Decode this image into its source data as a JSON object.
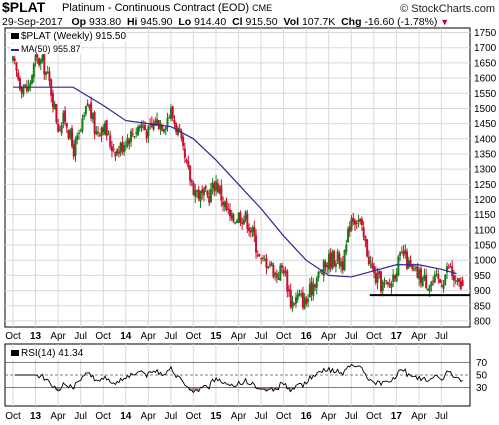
{
  "header": {
    "symbol": "$PLAT",
    "name": "Platinum - Continuous Contract (EOD)",
    "exchange": "CME",
    "brand": "© StockCharts.com",
    "date": "29-Sep-2017",
    "op_label": "Op",
    "op": "933.80",
    "hi_label": "Hi",
    "hi": "945.90",
    "lo_label": "Lo",
    "lo": "914.40",
    "cl_label": "Cl",
    "cl": "915.50",
    "vol_label": "Vol",
    "vol": "107.7K",
    "chg_label": "Chg",
    "chg": "-16.60 (-1.78%)"
  },
  "legend": {
    "price": "$PLAT (Weekly) 915.50",
    "ma": "MA(50) 955.87",
    "rsi": "RSI(14) 41.34"
  },
  "colors": {
    "up": "#1a7a1a",
    "down": "#c8102e",
    "ma": "#2a2a9a",
    "rsi": "#000000",
    "rsi_fill": "#a0507a",
    "support": "#000000",
    "grid": "#d8d8d8"
  },
  "chart_data": [
    {
      "type": "candlestick",
      "timeframe": "weekly",
      "x_range": [
        "2012-10",
        "2017-09"
      ],
      "x_tick_labels": [
        "Oct",
        "13",
        "Apr",
        "Jul",
        "Oct",
        "14",
        "Apr",
        "Jul",
        "Oct",
        "15",
        "Apr",
        "Jul",
        "Oct",
        "16",
        "Apr",
        "Jul",
        "Oct",
        "17",
        "Apr",
        "Jul"
      ],
      "y_tick_labels": [
        800,
        850,
        900,
        950,
        1000,
        1050,
        1100,
        1150,
        1200,
        1250,
        1300,
        1350,
        1400,
        1450,
        1500,
        1550,
        1600,
        1650,
        1700,
        1750
      ],
      "ylim": [
        780,
        1765
      ],
      "grid": true,
      "close_anchors": [
        {
          "x": "2012-10",
          "close": 1650
        },
        {
          "x": "2012-11",
          "close": 1580
        },
        {
          "x": "2012-12",
          "close": 1560
        },
        {
          "x": "2013-01",
          "close": 1660
        },
        {
          "x": "2013-02",
          "close": 1650
        },
        {
          "x": "2013-03",
          "close": 1570
        },
        {
          "x": "2013-04",
          "close": 1440
        },
        {
          "x": "2013-05",
          "close": 1470
        },
        {
          "x": "2013-06",
          "close": 1360
        },
        {
          "x": "2013-07",
          "close": 1420
        },
        {
          "x": "2013-08",
          "close": 1520
        },
        {
          "x": "2013-09",
          "close": 1420
        },
        {
          "x": "2013-10",
          "close": 1450
        },
        {
          "x": "2013-11",
          "close": 1380
        },
        {
          "x": "2013-12",
          "close": 1360
        },
        {
          "x": "2014-01",
          "close": 1400
        },
        {
          "x": "2014-02",
          "close": 1420
        },
        {
          "x": "2014-03",
          "close": 1450
        },
        {
          "x": "2014-04",
          "close": 1420
        },
        {
          "x": "2014-05",
          "close": 1460
        },
        {
          "x": "2014-06",
          "close": 1450
        },
        {
          "x": "2014-07",
          "close": 1490
        },
        {
          "x": "2014-08",
          "close": 1420
        },
        {
          "x": "2014-09",
          "close": 1310
        },
        {
          "x": "2014-10",
          "close": 1240
        },
        {
          "x": "2014-11",
          "close": 1210
        },
        {
          "x": "2014-12",
          "close": 1210
        },
        {
          "x": "2015-01",
          "close": 1260
        },
        {
          "x": "2015-02",
          "close": 1190
        },
        {
          "x": "2015-03",
          "close": 1130
        },
        {
          "x": "2015-04",
          "close": 1150
        },
        {
          "x": "2015-05",
          "close": 1140
        },
        {
          "x": "2015-06",
          "close": 1080
        },
        {
          "x": "2015-07",
          "close": 990
        },
        {
          "x": "2015-08",
          "close": 1000
        },
        {
          "x": "2015-09",
          "close": 950
        },
        {
          "x": "2015-10",
          "close": 980
        },
        {
          "x": "2015-11",
          "close": 860
        },
        {
          "x": "2015-12",
          "close": 880
        },
        {
          "x": "2016-01",
          "close": 860
        },
        {
          "x": "2016-02",
          "close": 930
        },
        {
          "x": "2016-03",
          "close": 960
        },
        {
          "x": "2016-04",
          "close": 1000
        },
        {
          "x": "2016-05",
          "close": 1010
        },
        {
          "x": "2016-06",
          "close": 990
        },
        {
          "x": "2016-07",
          "close": 1150
        },
        {
          "x": "2016-08",
          "close": 1130
        },
        {
          "x": "2016-09",
          "close": 1040
        },
        {
          "x": "2016-10",
          "close": 950
        },
        {
          "x": "2016-11",
          "close": 920
        },
        {
          "x": "2016-12",
          "close": 910
        },
        {
          "x": "2017-01",
          "close": 980
        },
        {
          "x": "2017-02",
          "close": 1020
        },
        {
          "x": "2017-03",
          "close": 960
        },
        {
          "x": "2017-04",
          "close": 950
        },
        {
          "x": "2017-05",
          "close": 930
        },
        {
          "x": "2017-06",
          "close": 930
        },
        {
          "x": "2017-07",
          "close": 930
        },
        {
          "x": "2017-08",
          "close": 980
        },
        {
          "x": "2017-09",
          "close": 915.5
        }
      ],
      "ma": [
        {
          "x": "2012-10",
          "y": 1570
        },
        {
          "x": "2013-06",
          "y": 1570
        },
        {
          "x": "2013-10",
          "y": 1510
        },
        {
          "x": "2014-01",
          "y": 1460
        },
        {
          "x": "2014-07",
          "y": 1440
        },
        {
          "x": "2014-10",
          "y": 1400
        },
        {
          "x": "2015-01",
          "y": 1330
        },
        {
          "x": "2015-04",
          "y": 1250
        },
        {
          "x": "2015-07",
          "y": 1170
        },
        {
          "x": "2015-10",
          "y": 1080
        },
        {
          "x": "2016-01",
          "y": 1000
        },
        {
          "x": "2016-04",
          "y": 950
        },
        {
          "x": "2016-07",
          "y": 945
        },
        {
          "x": "2016-10",
          "y": 965
        },
        {
          "x": "2017-01",
          "y": 985
        },
        {
          "x": "2017-04",
          "y": 985
        },
        {
          "x": "2017-07",
          "y": 970
        },
        {
          "x": "2017-09",
          "y": 955.87
        }
      ],
      "support_level": 885
    },
    {
      "type": "line",
      "name": "RSI(14)",
      "ylim": [
        0,
        100
      ],
      "y_tick_labels": [
        30,
        50,
        70
      ],
      "reference_lines": [
        30,
        50,
        70
      ],
      "last": 41.34
    }
  ]
}
